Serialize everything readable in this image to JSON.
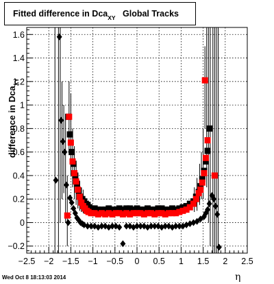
{
  "chart_data": {
    "type": "scatter",
    "title": "Fitted difference in Dca",
    "title_subscript": "XY",
    "title_suffix": "Global Tracks",
    "ylabel": "difference in Dca",
    "ylabel_subscript": "XY",
    "xlabel": "η",
    "xlim": [
      -2.5,
      2.5
    ],
    "ylim": [
      -0.26,
      1.66
    ],
    "x_ticks": [
      -2.5,
      -2,
      -1.5,
      -1,
      -0.5,
      0,
      0.5,
      1,
      1.5,
      2,
      2.5
    ],
    "x_tick_labels": [
      "−2.5",
      "−2",
      "−1.5",
      "−1",
      "−0.5",
      "0",
      "0.5",
      "1",
      "1.5",
      "2",
      "2.5"
    ],
    "y_ticks": [
      -0.2,
      0,
      0.2,
      0.4,
      0.6,
      0.8,
      1,
      1.2,
      1.4,
      1.6
    ],
    "y_tick_labels": [
      "−0.2",
      "0",
      "0.2",
      "0.4",
      "0.6",
      "0.8",
      "1",
      "1.2",
      "1.4",
      "1.6"
    ],
    "grid": true,
    "colors": {
      "black": "#000000",
      "red": "#ff0000"
    },
    "series": [
      {
        "marker": "square",
        "color": "#000000",
        "points": [
          [
            -1.56,
            0.9
          ],
          [
            -1.52,
            0.75
          ],
          [
            -1.48,
            0.6
          ],
          [
            -1.44,
            0.5
          ],
          [
            -1.4,
            0.4
          ],
          [
            -1.36,
            0.33
          ],
          [
            -1.32,
            0.27
          ],
          [
            -1.28,
            0.22
          ],
          [
            -1.24,
            0.2
          ],
          [
            -1.2,
            0.18
          ],
          [
            -1.16,
            0.16
          ],
          [
            -1.12,
            0.15
          ],
          [
            -1.08,
            0.13
          ],
          [
            -1.04,
            0.12
          ],
          [
            -0.96,
            0.12
          ],
          [
            -0.88,
            0.11
          ],
          [
            -0.8,
            0.11
          ],
          [
            -0.72,
            0.11
          ],
          [
            -0.64,
            0.12
          ],
          [
            -0.56,
            0.11
          ],
          [
            -0.48,
            0.11
          ],
          [
            -0.4,
            0.12
          ],
          [
            -0.32,
            0.11
          ],
          [
            -0.24,
            0.12
          ],
          [
            -0.16,
            0.12
          ],
          [
            -0.08,
            0.11
          ],
          [
            0.0,
            0.12
          ],
          [
            0.08,
            0.11
          ],
          [
            0.16,
            0.11
          ],
          [
            0.24,
            0.12
          ],
          [
            0.32,
            0.11
          ],
          [
            0.4,
            0.11
          ],
          [
            0.48,
            0.12
          ],
          [
            0.56,
            0.12
          ],
          [
            0.64,
            0.11
          ],
          [
            0.72,
            0.11
          ],
          [
            0.8,
            0.12
          ],
          [
            0.88,
            0.11
          ],
          [
            0.96,
            0.12
          ],
          [
            1.04,
            0.13
          ],
          [
            1.12,
            0.14
          ],
          [
            1.2,
            0.16
          ],
          [
            1.28,
            0.18
          ],
          [
            1.34,
            0.22
          ],
          [
            1.4,
            0.26
          ],
          [
            1.44,
            0.31
          ],
          [
            1.48,
            0.37
          ],
          [
            1.52,
            0.44
          ],
          [
            1.56,
            0.52
          ],
          [
            1.6,
            0.61
          ],
          [
            1.64,
            0.8
          ]
        ]
      },
      {
        "marker": "square",
        "color": "#ff0000",
        "points": [
          [
            -1.58,
            0.06
          ],
          [
            -1.54,
            0.9
          ],
          [
            -1.5,
            0.68
          ],
          [
            -1.46,
            0.52
          ],
          [
            -1.42,
            0.42
          ],
          [
            -1.38,
            0.35
          ],
          [
            -1.34,
            0.28
          ],
          [
            -1.3,
            0.22
          ],
          [
            -1.26,
            0.17
          ],
          [
            -1.22,
            0.14
          ],
          [
            -1.18,
            0.12
          ],
          [
            -1.14,
            0.1
          ],
          [
            -1.1,
            0.09
          ],
          [
            -1.04,
            0.08
          ],
          [
            -0.96,
            0.08
          ],
          [
            -0.88,
            0.07
          ],
          [
            -0.8,
            0.08
          ],
          [
            -0.72,
            0.07
          ],
          [
            -0.64,
            0.08
          ],
          [
            -0.56,
            0.07
          ],
          [
            -0.48,
            0.08
          ],
          [
            -0.4,
            0.08
          ],
          [
            -0.32,
            0.07
          ],
          [
            -0.24,
            0.08
          ],
          [
            -0.16,
            0.07
          ],
          [
            -0.08,
            0.08
          ],
          [
            0.0,
            0.08
          ],
          [
            0.08,
            0.08
          ],
          [
            0.16,
            0.07
          ],
          [
            0.24,
            0.08
          ],
          [
            0.32,
            0.08
          ],
          [
            0.4,
            0.07
          ],
          [
            0.48,
            0.08
          ],
          [
            0.56,
            0.08
          ],
          [
            0.64,
            0.07
          ],
          [
            0.72,
            0.08
          ],
          [
            0.8,
            0.08
          ],
          [
            0.88,
            0.08
          ],
          [
            0.96,
            0.09
          ],
          [
            1.04,
            0.1
          ],
          [
            1.12,
            0.11
          ],
          [
            1.2,
            0.13
          ],
          [
            1.28,
            0.16
          ],
          [
            1.34,
            0.2
          ],
          [
            1.4,
            0.25
          ],
          [
            1.44,
            0.28
          ],
          [
            1.48,
            0.34
          ],
          [
            1.52,
            0.42
          ],
          [
            1.56,
            0.55
          ],
          [
            1.6,
            0.7
          ],
          [
            1.54,
            1.21
          ],
          [
            1.76,
            0.4
          ]
        ]
      },
      {
        "marker": "diamond",
        "color": "#000000",
        "points": [
          [
            -1.84,
            0.36
          ],
          [
            -1.76,
            1.58
          ],
          [
            -1.72,
            0.87
          ],
          [
            -1.68,
            0.69
          ],
          [
            -1.64,
            0.6
          ],
          [
            -1.6,
            0.32
          ],
          [
            -1.56,
            0.0
          ],
          [
            -1.52,
            0.21
          ],
          [
            -1.48,
            0.17
          ],
          [
            -1.44,
            0.12
          ],
          [
            -1.4,
            0.08
          ],
          [
            -1.36,
            0.04
          ],
          [
            -1.32,
            0.02
          ],
          [
            -1.28,
            0.0
          ],
          [
            -1.24,
            -0.01
          ],
          [
            -1.2,
            -0.02
          ],
          [
            -1.12,
            -0.03
          ],
          [
            -1.04,
            -0.03
          ],
          [
            -0.96,
            -0.03
          ],
          [
            -0.88,
            -0.04
          ],
          [
            -0.8,
            -0.03
          ],
          [
            -0.72,
            -0.03
          ],
          [
            -0.64,
            -0.04
          ],
          [
            -0.56,
            -0.03
          ],
          [
            -0.48,
            -0.03
          ],
          [
            -0.4,
            -0.04
          ],
          [
            -0.32,
            -0.18
          ],
          [
            -0.24,
            -0.03
          ],
          [
            -0.16,
            -0.03
          ],
          [
            -0.08,
            -0.04
          ],
          [
            0.0,
            -0.03
          ],
          [
            0.08,
            -0.03
          ],
          [
            0.16,
            -0.03
          ],
          [
            0.24,
            -0.04
          ],
          [
            0.32,
            -0.03
          ],
          [
            0.4,
            -0.03
          ],
          [
            0.48,
            -0.03
          ],
          [
            0.56,
            -0.04
          ],
          [
            0.64,
            -0.03
          ],
          [
            0.72,
            -0.03
          ],
          [
            0.8,
            -0.04
          ],
          [
            0.88,
            -0.03
          ],
          [
            0.96,
            -0.03
          ],
          [
            1.04,
            -0.03
          ],
          [
            1.12,
            -0.02
          ],
          [
            1.2,
            -0.01
          ],
          [
            1.28,
            0.0
          ],
          [
            1.36,
            0.01
          ],
          [
            1.44,
            0.03
          ],
          [
            1.52,
            0.05
          ],
          [
            1.56,
            0.08
          ],
          [
            1.6,
            0.11
          ],
          [
            1.64,
            0.16
          ],
          [
            1.7,
            0.23
          ],
          [
            1.74,
            0.2
          ],
          [
            1.78,
            0.14
          ],
          [
            1.82,
            0.07
          ],
          [
            1.86,
            -0.21
          ]
        ]
      }
    ],
    "error_bars": [
      [
        -1.86,
        -0.26,
        1.66
      ],
      [
        -1.78,
        -0.26,
        1.66
      ],
      [
        -1.74,
        0.0,
        1.66
      ],
      [
        -1.7,
        0.2,
        1.2
      ],
      [
        -1.66,
        0.25,
        1.0
      ],
      [
        -1.62,
        0.0,
        0.9
      ],
      [
        -1.58,
        -0.2,
        0.4
      ],
      [
        -1.54,
        0.6,
        1.2
      ],
      [
        -1.5,
        0.4,
        1.1
      ],
      [
        -1.46,
        0.3,
        0.8
      ],
      [
        -1.42,
        0.2,
        0.65
      ],
      [
        -1.38,
        0.15,
        0.5
      ],
      [
        -1.34,
        0.12,
        0.42
      ],
      [
        -1.3,
        0.1,
        0.35
      ],
      [
        -1.26,
        0.09,
        0.3
      ],
      [
        -1.22,
        0.08,
        0.28
      ],
      [
        1.3,
        0.09,
        0.3
      ],
      [
        1.36,
        0.1,
        0.38
      ],
      [
        1.42,
        0.15,
        0.5
      ],
      [
        1.46,
        0.2,
        0.6
      ],
      [
        1.5,
        0.2,
        0.8
      ],
      [
        1.54,
        0.8,
        1.5
      ],
      [
        1.58,
        0.3,
        1.66
      ],
      [
        1.62,
        0.0,
        1.66
      ],
      [
        1.66,
        -0.2,
        1.66
      ],
      [
        1.72,
        -0.26,
        1.66
      ],
      [
        1.76,
        -0.26,
        1.66
      ],
      [
        1.8,
        -0.26,
        1.66
      ],
      [
        1.84,
        -0.26,
        1.66
      ]
    ]
  },
  "footer": {
    "timestamp": "Wed Oct  8 18:13:03 2014"
  }
}
